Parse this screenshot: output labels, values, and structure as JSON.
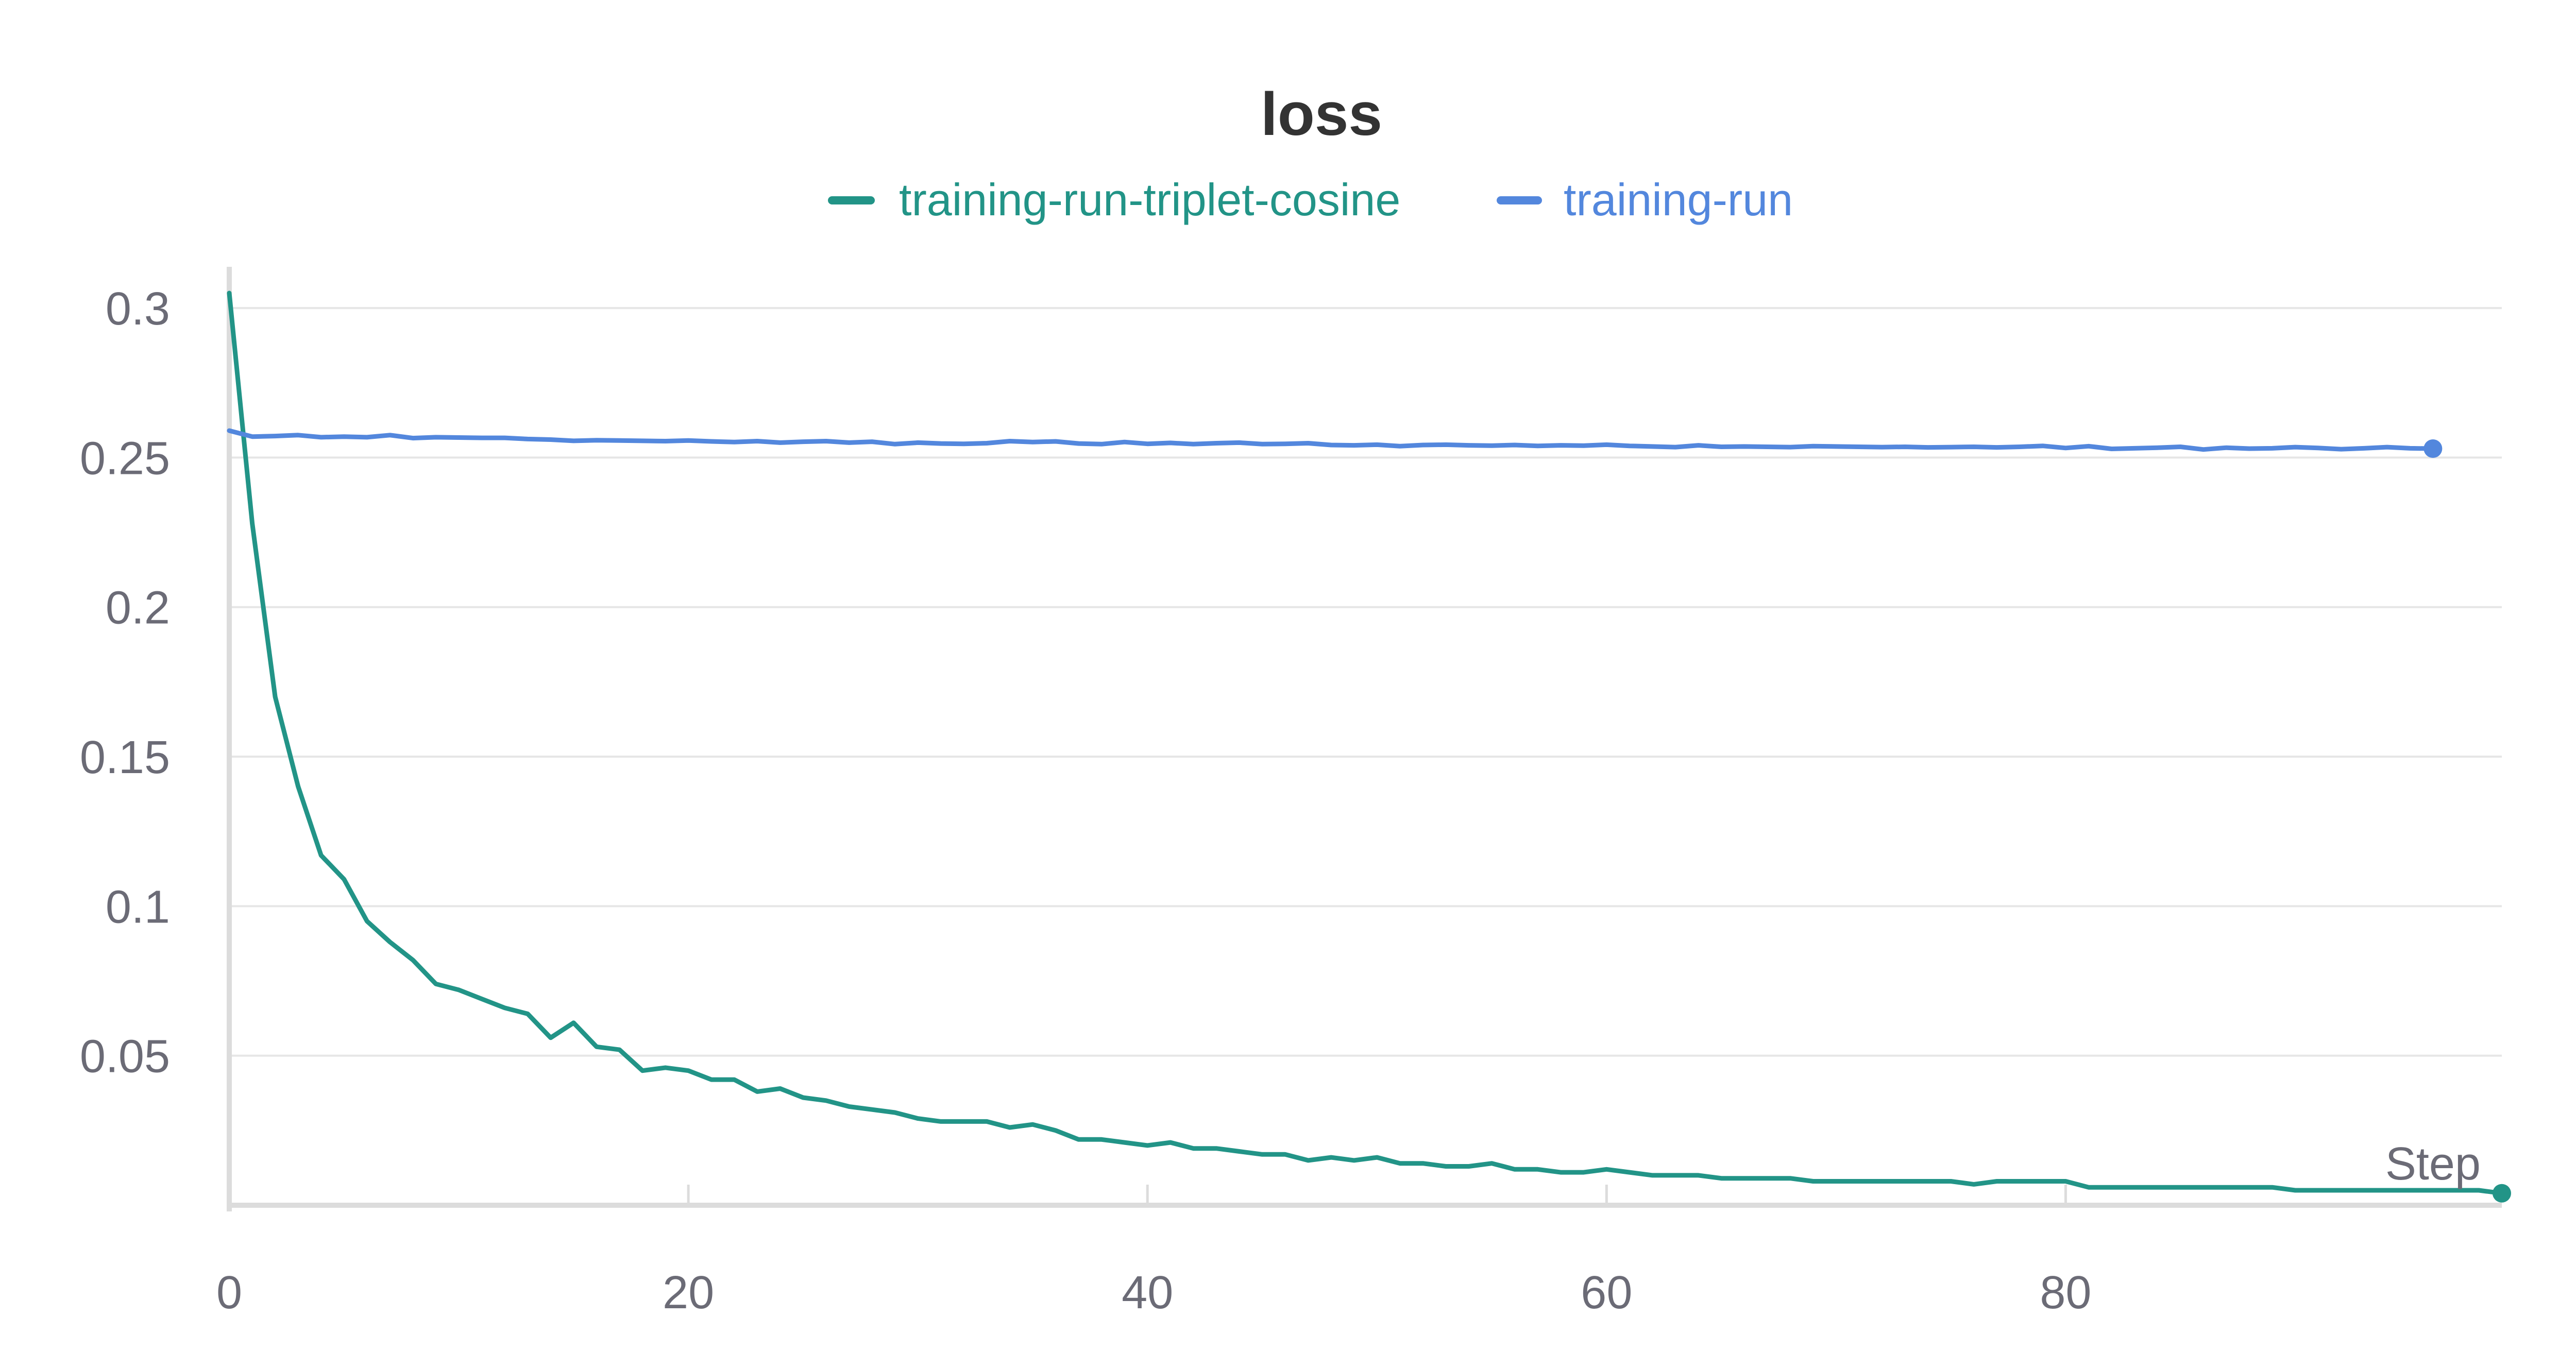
{
  "chart_data": {
    "type": "line",
    "title": "loss",
    "xlabel": "Step",
    "ylabel": "",
    "xlim": [
      0,
      99
    ],
    "ylim": [
      0,
      0.31
    ],
    "x_ticks": [
      0,
      20,
      40,
      60,
      80
    ],
    "x_tick_labels": [
      "0",
      "20",
      "40",
      "60",
      "80"
    ],
    "y_ticks": [
      0.05,
      0.1,
      0.15,
      0.2,
      0.25,
      0.3
    ],
    "y_tick_labels": [
      "0.05",
      "0.1",
      "0.15",
      "0.2",
      "0.25",
      "0.3"
    ],
    "grid": true,
    "legend_position": "top-center",
    "series": [
      {
        "name": "training-run-triplet-cosine",
        "color": "#229487",
        "x": [
          0,
          1,
          2,
          3,
          4,
          5,
          6,
          7,
          8,
          9,
          10,
          11,
          12,
          13,
          14,
          15,
          16,
          17,
          18,
          19,
          20,
          21,
          22,
          23,
          24,
          25,
          26,
          27,
          28,
          29,
          30,
          31,
          32,
          33,
          34,
          35,
          36,
          37,
          38,
          39,
          40,
          41,
          42,
          43,
          44,
          45,
          46,
          47,
          48,
          49,
          50,
          51,
          52,
          53,
          54,
          55,
          56,
          57,
          58,
          59,
          60,
          61,
          62,
          63,
          64,
          65,
          66,
          67,
          68,
          69,
          70,
          71,
          72,
          73,
          74,
          75,
          76,
          77,
          78,
          79,
          80,
          81,
          82,
          83,
          84,
          85,
          86,
          87,
          88,
          89,
          90,
          91,
          92,
          93,
          94,
          95,
          96,
          97,
          98,
          99
        ],
        "values": [
          0.305,
          0.228,
          0.17,
          0.14,
          0.117,
          0.109,
          0.095,
          0.088,
          0.082,
          0.074,
          0.072,
          0.069,
          0.066,
          0.064,
          0.056,
          0.061,
          0.053,
          0.052,
          0.045,
          0.046,
          0.045,
          0.042,
          0.042,
          0.038,
          0.039,
          0.036,
          0.035,
          0.033,
          0.032,
          0.031,
          0.029,
          0.028,
          0.028,
          0.028,
          0.026,
          0.027,
          0.025,
          0.022,
          0.022,
          0.021,
          0.02,
          0.021,
          0.019,
          0.019,
          0.018,
          0.017,
          0.017,
          0.015,
          0.016,
          0.015,
          0.016,
          0.014,
          0.014,
          0.013,
          0.013,
          0.014,
          0.012,
          0.012,
          0.011,
          0.011,
          0.012,
          0.011,
          0.01,
          0.01,
          0.01,
          0.009,
          0.009,
          0.009,
          0.009,
          0.008,
          0.008,
          0.008,
          0.008,
          0.008,
          0.008,
          0.008,
          0.007,
          0.008,
          0.008,
          0.008,
          0.008,
          0.006,
          0.006,
          0.006,
          0.006,
          0.006,
          0.006,
          0.006,
          0.006,
          0.006,
          0.005,
          0.005,
          0.005,
          0.005,
          0.005,
          0.005,
          0.005,
          0.005,
          0.005,
          0.004
        ]
      },
      {
        "name": "training-run",
        "color": "#5387dd",
        "x": [
          0,
          1,
          2,
          3,
          4,
          5,
          6,
          7,
          8,
          9,
          10,
          11,
          12,
          13,
          14,
          15,
          16,
          17,
          18,
          19,
          20,
          21,
          22,
          23,
          24,
          25,
          26,
          27,
          28,
          29,
          30,
          31,
          32,
          33,
          34,
          35,
          36,
          37,
          38,
          39,
          40,
          41,
          42,
          43,
          44,
          45,
          46,
          47,
          48,
          49,
          50,
          51,
          52,
          53,
          54,
          55,
          56,
          57,
          58,
          59,
          60,
          61,
          62,
          63,
          64,
          65,
          66,
          67,
          68,
          69,
          70,
          71,
          72,
          73,
          74,
          75,
          76,
          77,
          78,
          79,
          80,
          81,
          82,
          83,
          84,
          85,
          86,
          87,
          88,
          89,
          90,
          91,
          92,
          93,
          94,
          95,
          96
        ],
        "values": [
          0.259,
          0.257,
          0.2572,
          0.2575,
          0.2568,
          0.257,
          0.2568,
          0.2575,
          0.2565,
          0.2568,
          0.2567,
          0.2566,
          0.2566,
          0.2562,
          0.256,
          0.2556,
          0.2558,
          0.2557,
          0.2556,
          0.2555,
          0.2557,
          0.2554,
          0.2552,
          0.2555,
          0.255,
          0.2553,
          0.2555,
          0.255,
          0.2553,
          0.2545,
          0.255,
          0.2547,
          0.2546,
          0.2548,
          0.2555,
          0.2552,
          0.2554,
          0.2547,
          0.2545,
          0.2552,
          0.2546,
          0.2549,
          0.2545,
          0.2548,
          0.255,
          0.2545,
          0.2546,
          0.2548,
          0.2542,
          0.2541,
          0.2543,
          0.2538,
          0.2542,
          0.2543,
          0.2541,
          0.254,
          0.2542,
          0.2539,
          0.2541,
          0.254,
          0.2543,
          0.2539,
          0.2537,
          0.2535,
          0.2541,
          0.2536,
          0.2537,
          0.2536,
          0.2535,
          0.2538,
          0.2537,
          0.2536,
          0.2535,
          0.2536,
          0.2534,
          0.2535,
          0.2536,
          0.2534,
          0.2536,
          0.2539,
          0.2532,
          0.2538,
          0.2529,
          0.2531,
          0.2533,
          0.2536,
          0.2527,
          0.2533,
          0.253,
          0.2531,
          0.2535,
          0.2532,
          0.2528,
          0.2531,
          0.2535,
          0.2531,
          0.253
        ]
      }
    ]
  }
}
